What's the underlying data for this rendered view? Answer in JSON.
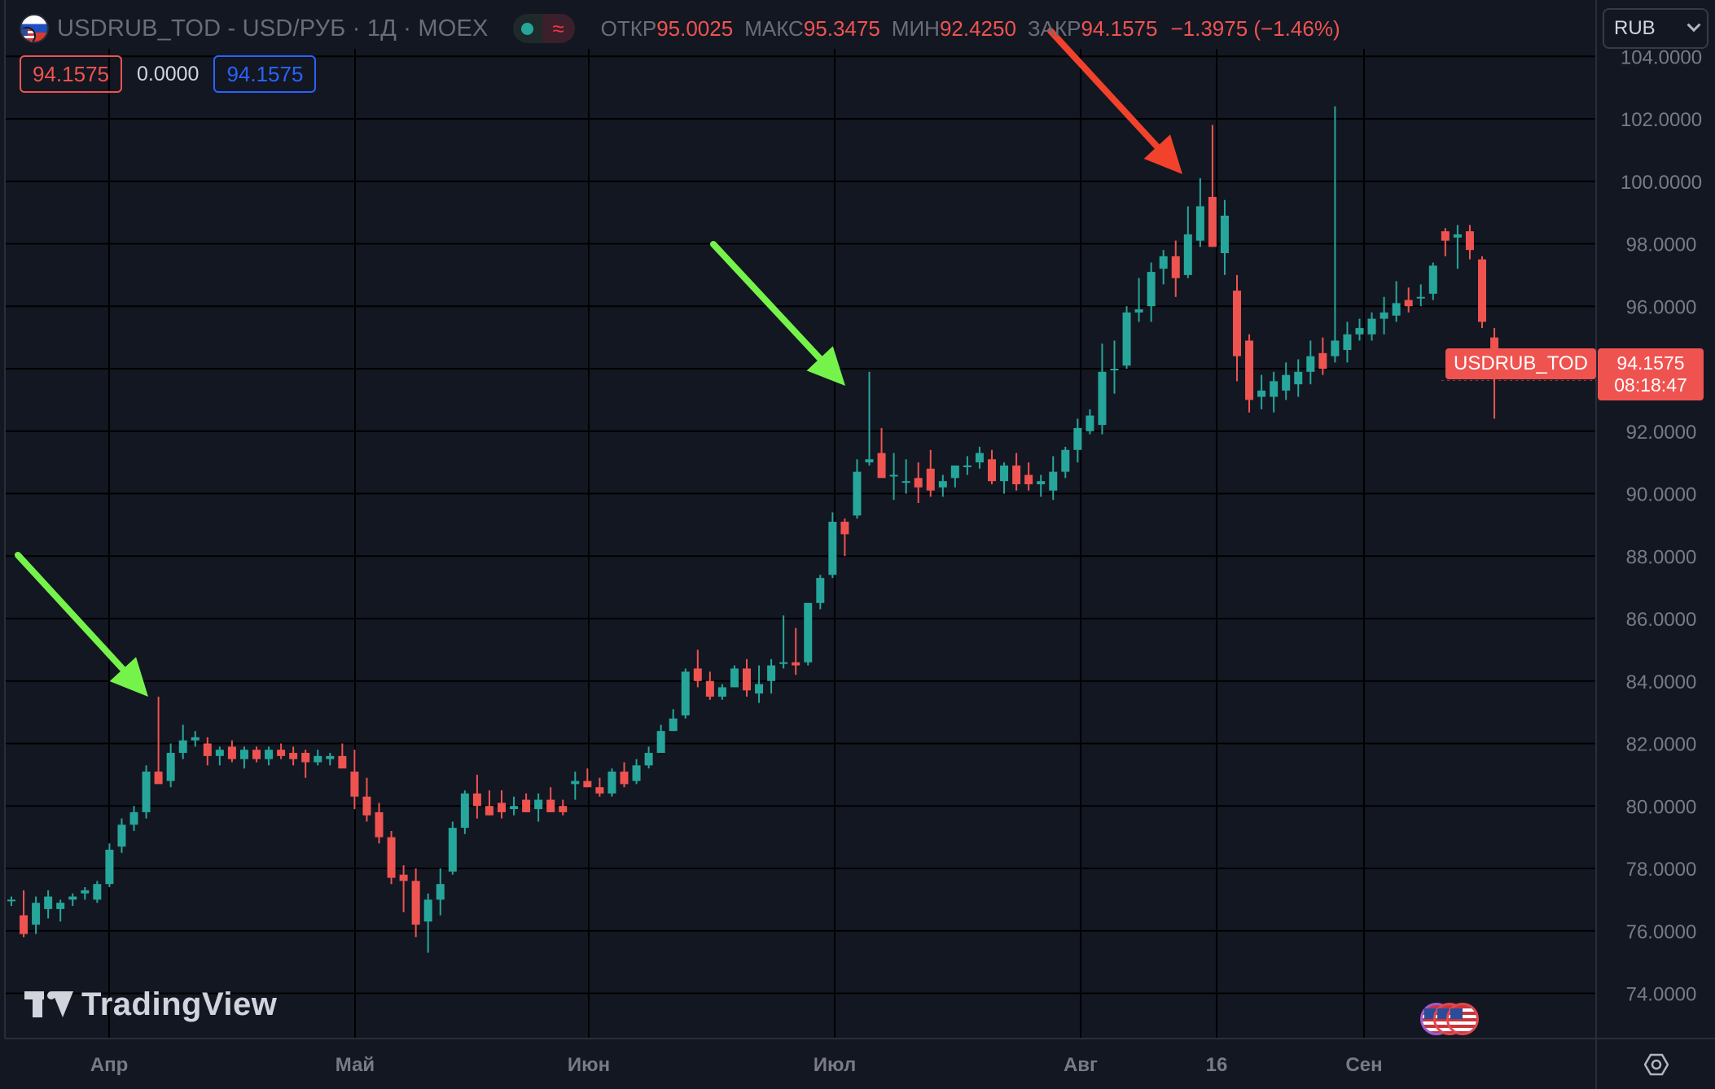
{
  "header": {
    "title": "USDRUB_TOD - USD/РУБ · 1Д · MOEX",
    "status_icon": "≈",
    "ohlc": [
      {
        "label": "ОТКР",
        "value": "95.0025"
      },
      {
        "label": "МАКС",
        "value": "95.3475"
      },
      {
        "label": "МИН",
        "value": "92.4250"
      },
      {
        "label": "ЗАКР",
        "value": "94.1575"
      }
    ],
    "change": "−1.3975 (−1.46%)"
  },
  "legend": {
    "value_red": "94.1575",
    "value_plain": "0.0000",
    "value_blue": "94.1575"
  },
  "currency_select": {
    "value": "RUB"
  },
  "price_label": {
    "symbol": "USDRUB_TOD",
    "price": "94.1575",
    "countdown": "08:18:47"
  },
  "logo_text": "TradingView",
  "icons": {
    "flag": "usd-rub-flag-icon",
    "settings": "settings-icon",
    "events": "us-flag-event-icon"
  },
  "colors": {
    "background": "#131722",
    "up": "#26a69a",
    "down": "#ef5350",
    "grid": "#000000",
    "arrow_green": "#76f34b",
    "arrow_red": "#f2422b"
  },
  "chart_data": {
    "type": "candlestick",
    "y_ticks": [
      "74.0000",
      "76.0000",
      "78.0000",
      "80.0000",
      "82.0000",
      "84.0000",
      "86.0000",
      "88.0000",
      "90.0000",
      "92.0000",
      "94.0000",
      "96.0000",
      "98.0000",
      "100.0000",
      "102.0000",
      "104.0000"
    ],
    "ylim": [
      72.5,
      104.2
    ],
    "x_labels": [
      "Апр",
      "Май",
      "Июн",
      "Июл",
      "Авг",
      "16",
      "Сен"
    ],
    "grid": true,
    "candles": [
      [
        77.0,
        77.1,
        76.8,
        77.0
      ],
      [
        76.5,
        77.3,
        75.8,
        75.9
      ],
      [
        76.2,
        77.1,
        75.9,
        76.9
      ],
      [
        76.7,
        77.3,
        76.4,
        77.1
      ],
      [
        76.7,
        77.0,
        76.3,
        76.9
      ],
      [
        77.0,
        77.2,
        76.8,
        77.1
      ],
      [
        77.2,
        77.4,
        77.0,
        77.3
      ],
      [
        77.0,
        77.6,
        76.9,
        77.5
      ],
      [
        77.5,
        78.8,
        77.4,
        78.6
      ],
      [
        78.7,
        79.6,
        78.5,
        79.4
      ],
      [
        79.4,
        80.0,
        79.2,
        79.8
      ],
      [
        79.8,
        81.3,
        79.6,
        81.1
      ],
      [
        81.1,
        83.5,
        80.9,
        80.7
      ],
      [
        80.8,
        82.0,
        80.6,
        81.7
      ],
      [
        81.7,
        82.6,
        81.5,
        82.1
      ],
      [
        82.1,
        82.4,
        81.9,
        82.2
      ],
      [
        82.0,
        82.2,
        81.3,
        81.6
      ],
      [
        81.6,
        81.9,
        81.3,
        81.8
      ],
      [
        81.9,
        82.1,
        81.4,
        81.5
      ],
      [
        81.5,
        81.9,
        81.2,
        81.8
      ],
      [
        81.8,
        81.9,
        81.4,
        81.5
      ],
      [
        81.5,
        81.9,
        81.3,
        81.8
      ],
      [
        81.8,
        82.0,
        81.5,
        81.6
      ],
      [
        81.7,
        81.9,
        81.3,
        81.5
      ],
      [
        81.7,
        81.8,
        80.9,
        81.4
      ],
      [
        81.4,
        81.8,
        81.3,
        81.6
      ],
      [
        81.5,
        81.7,
        81.3,
        81.6
      ],
      [
        81.6,
        82.0,
        81.3,
        81.2
      ],
      [
        81.1,
        81.8,
        79.9,
        80.3
      ],
      [
        80.3,
        80.9,
        79.5,
        79.7
      ],
      [
        79.8,
        80.1,
        78.8,
        79.0
      ],
      [
        79.0,
        79.2,
        77.5,
        77.7
      ],
      [
        77.8,
        78.1,
        76.6,
        77.6
      ],
      [
        77.6,
        78.0,
        75.8,
        76.2
      ],
      [
        76.3,
        77.2,
        75.3,
        77.0
      ],
      [
        77.0,
        78.0,
        76.5,
        77.5
      ],
      [
        77.9,
        79.5,
        77.8,
        79.3
      ],
      [
        79.3,
        80.5,
        79.1,
        80.4
      ],
      [
        80.4,
        81.0,
        79.6,
        80.0
      ],
      [
        80.0,
        80.5,
        79.7,
        79.7
      ],
      [
        80.1,
        80.5,
        79.6,
        79.8
      ],
      [
        79.9,
        80.3,
        79.7,
        80.0
      ],
      [
        80.2,
        80.4,
        79.8,
        79.8
      ],
      [
        79.9,
        80.4,
        79.5,
        80.2
      ],
      [
        80.2,
        80.6,
        79.8,
        79.8
      ],
      [
        80.0,
        80.2,
        79.7,
        79.8
      ],
      [
        80.7,
        81.1,
        80.2,
        80.8
      ],
      [
        80.8,
        81.2,
        80.6,
        80.6
      ],
      [
        80.6,
        80.9,
        80.3,
        80.4
      ],
      [
        80.4,
        81.2,
        80.3,
        81.1
      ],
      [
        81.1,
        81.4,
        80.6,
        80.7
      ],
      [
        80.8,
        81.5,
        80.7,
        81.3
      ],
      [
        81.3,
        81.9,
        81.2,
        81.7
      ],
      [
        81.7,
        82.6,
        81.7,
        82.4
      ],
      [
        82.4,
        83.1,
        82.4,
        82.8
      ],
      [
        82.9,
        84.4,
        82.8,
        84.3
      ],
      [
        84.4,
        85.0,
        83.8,
        84.0
      ],
      [
        84.0,
        84.3,
        83.4,
        83.5
      ],
      [
        83.5,
        83.9,
        83.4,
        83.8
      ],
      [
        83.8,
        84.5,
        83.8,
        84.4
      ],
      [
        84.4,
        84.7,
        83.5,
        83.7
      ],
      [
        83.6,
        84.5,
        83.3,
        83.9
      ],
      [
        84.0,
        84.7,
        83.6,
        84.5
      ],
      [
        84.6,
        86.1,
        84.4,
        84.6
      ],
      [
        84.6,
        85.7,
        84.2,
        84.5
      ],
      [
        84.6,
        86.5,
        84.5,
        86.5
      ],
      [
        86.5,
        87.4,
        86.3,
        87.3
      ],
      [
        87.4,
        89.4,
        87.3,
        89.1
      ],
      [
        89.1,
        89.2,
        88.0,
        88.7
      ],
      [
        89.3,
        91.1,
        89.2,
        90.7
      ],
      [
        91.0,
        93.9,
        90.9,
        91.1
      ],
      [
        91.3,
        92.1,
        90.8,
        90.5
      ],
      [
        90.6,
        91.3,
        89.8,
        90.6
      ],
      [
        90.4,
        91.1,
        90.0,
        90.4
      ],
      [
        90.5,
        91.0,
        89.7,
        90.2
      ],
      [
        90.8,
        91.4,
        89.9,
        90.1
      ],
      [
        90.2,
        90.6,
        89.9,
        90.4
      ],
      [
        90.5,
        90.9,
        90.2,
        90.9
      ],
      [
        90.9,
        91.2,
        90.6,
        90.9
      ],
      [
        91.0,
        91.5,
        90.8,
        91.3
      ],
      [
        91.1,
        91.4,
        90.3,
        90.4
      ],
      [
        90.4,
        91.0,
        90.0,
        90.9
      ],
      [
        90.9,
        91.3,
        90.1,
        90.3
      ],
      [
        90.6,
        91.0,
        90.1,
        90.3
      ],
      [
        90.3,
        90.6,
        89.9,
        90.4
      ],
      [
        90.1,
        91.2,
        89.8,
        90.7
      ],
      [
        90.7,
        91.5,
        90.5,
        91.4
      ],
      [
        91.4,
        92.4,
        91.0,
        92.1
      ],
      [
        92.0,
        92.7,
        91.9,
        92.5
      ],
      [
        92.2,
        94.8,
        91.9,
        93.9
      ],
      [
        94.0,
        94.9,
        93.2,
        94.0
      ],
      [
        94.1,
        96.0,
        94.0,
        95.8
      ],
      [
        95.8,
        96.9,
        95.5,
        95.9
      ],
      [
        96.0,
        97.4,
        95.5,
        97.1
      ],
      [
        97.2,
        97.8,
        96.7,
        97.6
      ],
      [
        97.6,
        98.1,
        96.3,
        96.9
      ],
      [
        97.0,
        99.2,
        96.9,
        98.3
      ],
      [
        98.1,
        100.1,
        97.9,
        99.2
      ],
      [
        99.5,
        101.8,
        97.9,
        97.9
      ],
      [
        97.7,
        99.4,
        97.0,
        98.9
      ],
      [
        96.5,
        97.0,
        93.6,
        94.4
      ],
      [
        94.9,
        95.1,
        92.6,
        93.0
      ],
      [
        93.1,
        93.8,
        92.7,
        93.3
      ],
      [
        93.1,
        93.9,
        92.6,
        93.6
      ],
      [
        93.3,
        94.2,
        93.0,
        93.8
      ],
      [
        93.5,
        94.3,
        93.1,
        93.9
      ],
      [
        93.9,
        94.9,
        93.5,
        94.4
      ],
      [
        94.5,
        95.0,
        93.8,
        94.0
      ],
      [
        94.4,
        102.4,
        94.2,
        94.9
      ],
      [
        94.6,
        95.5,
        94.2,
        95.1
      ],
      [
        95.1,
        95.6,
        94.9,
        95.3
      ],
      [
        95.1,
        95.8,
        94.9,
        95.6
      ],
      [
        95.6,
        96.3,
        95.1,
        95.8
      ],
      [
        95.7,
        96.8,
        95.5,
        96.1
      ],
      [
        96.2,
        96.6,
        95.8,
        96.0
      ],
      [
        96.3,
        96.7,
        96.0,
        96.3
      ],
      [
        96.4,
        97.4,
        96.2,
        97.3
      ],
      [
        98.4,
        98.5,
        97.6,
        98.1
      ],
      [
        98.2,
        98.6,
        97.2,
        98.3
      ],
      [
        98.4,
        98.6,
        97.5,
        97.8
      ],
      [
        97.5,
        97.6,
        95.3,
        95.5
      ],
      [
        95.0,
        95.3,
        92.4,
        94.2
      ]
    ]
  }
}
